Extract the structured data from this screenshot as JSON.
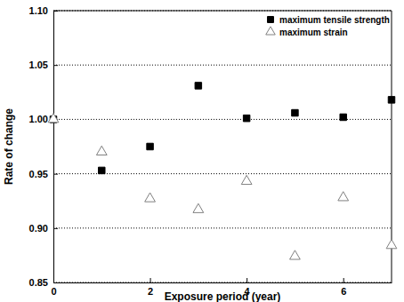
{
  "chart_data": {
    "type": "scatter",
    "x_label": "Exposure period (year)",
    "y_label": "Rate of change",
    "x": [
      0,
      1,
      2,
      3,
      4,
      5,
      6,
      7
    ],
    "series": [
      {
        "name": "maximum tensile strength",
        "color": "#000000",
        "marker": "square",
        "values": [
          1.0,
          0.953,
          0.975,
          1.031,
          1.001,
          1.006,
          1.002,
          1.018
        ]
      },
      {
        "name": "maximum strain",
        "color": "#808080",
        "marker": "triangle",
        "values": [
          1.0,
          0.97,
          0.927,
          0.917,
          0.943,
          0.874,
          0.928,
          0.884
        ]
      }
    ],
    "xlim": [
      0,
      7
    ],
    "xticks": [
      0,
      2,
      4,
      6
    ],
    "ylim": [
      0.85,
      1.1
    ],
    "yticks": [
      0.85,
      {
        "value": 0.9,
        "label": "0.90"
      },
      0.95,
      {
        "value": 1.0,
        "label": "1.00"
      },
      1.05,
      {
        "value": 1.1,
        "label": "1.10"
      }
    ],
    "grid": true,
    "legend": "top-right"
  }
}
